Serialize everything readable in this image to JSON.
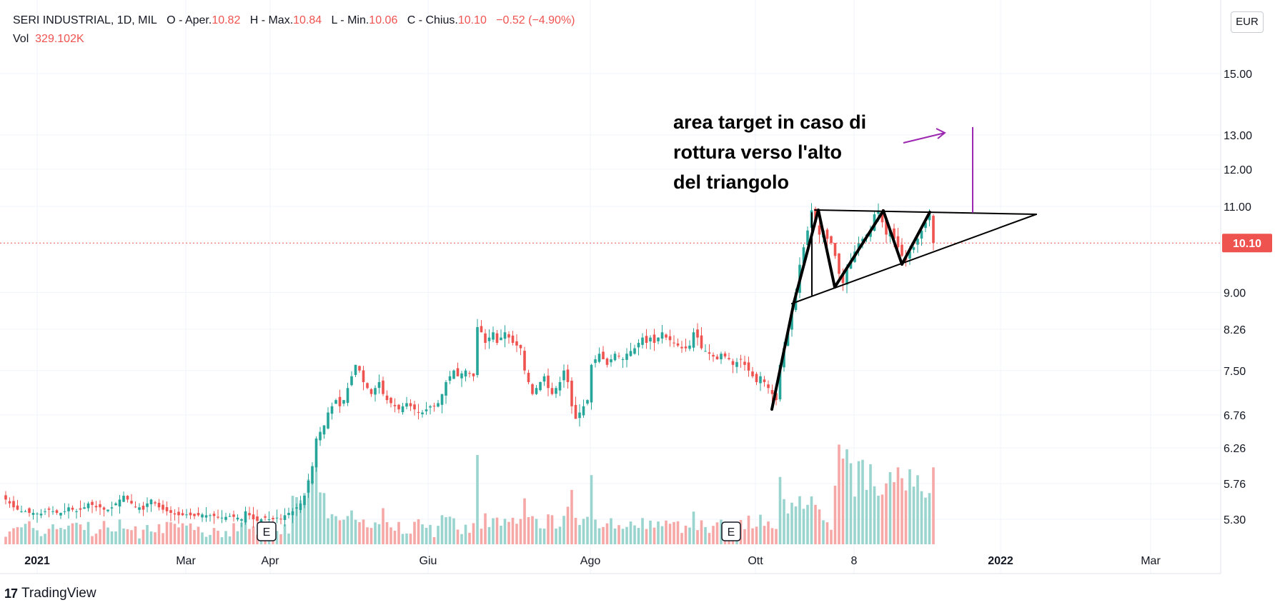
{
  "header": {
    "symbol_line": "SERI INDUSTRIAL, 1D, MIL",
    "o_label": "O - Aper.",
    "o_value": "10.82",
    "h_label": "H - Max.",
    "h_value": "10.84",
    "l_label": "L - Min.",
    "l_value": "10.06",
    "c_label": "C - Chius.",
    "c_value": "10.10",
    "change": "−0.52 (−4.90%)",
    "vol_label": "Vol",
    "vol_value": "329.102K"
  },
  "currency_button": "EUR",
  "annotation": {
    "line1": "area target in caso di",
    "line2": "rottura verso l'alto",
    "line3": "del triangolo"
  },
  "brand": {
    "logo": "17",
    "name": "TradingView"
  },
  "colors": {
    "up": "#26a69a",
    "down": "#ef5350",
    "up_vol": "#9ad4cf",
    "down_vol": "#f5a8a6",
    "grid": "#f0f3fa",
    "accent": "#9c27b0"
  },
  "chart_data": {
    "type": "candlestick",
    "scale": "log",
    "currency": "EUR",
    "last_price": "10.10",
    "y_ticks": [
      "15.00",
      "13.00",
      "12.00",
      "11.00",
      "9.00",
      "8.26",
      "7.50",
      "6.76",
      "6.26",
      "5.76",
      "5.30"
    ],
    "x_ticks": [
      "2021",
      "Mar",
      "Apr",
      "Giu",
      "Ago",
      "Ott",
      "8",
      "2022",
      "Mar"
    ],
    "earnings_marker": "E",
    "closes": [
      5.55,
      5.5,
      5.45,
      5.42,
      5.4,
      5.4,
      5.38,
      5.38,
      5.37,
      5.37,
      5.4,
      5.42,
      5.4,
      5.38,
      5.38,
      5.4,
      5.45,
      5.42,
      5.4,
      5.42,
      5.45,
      5.5,
      5.48,
      5.45,
      5.45,
      5.42,
      5.42,
      5.45,
      5.5,
      5.55,
      5.6,
      5.55,
      5.5,
      5.45,
      5.45,
      5.42,
      5.5,
      5.55,
      5.5,
      5.45,
      5.42,
      5.4,
      5.38,
      5.36,
      5.35,
      5.35,
      5.36,
      5.35,
      5.34,
      5.35,
      5.36,
      5.35,
      5.35,
      5.34,
      5.32,
      5.32,
      5.33,
      5.34,
      5.33,
      5.32,
      5.3,
      5.4,
      5.35,
      5.3,
      5.28,
      5.3,
      5.32,
      5.3,
      5.3,
      5.32,
      5.3,
      5.35,
      5.38,
      5.4,
      5.45,
      5.5,
      5.6,
      5.8,
      6.0,
      6.4,
      6.5,
      6.6,
      6.8,
      6.9,
      7.0,
      6.9,
      7.0,
      7.2,
      7.4,
      7.6,
      7.5,
      7.3,
      7.2,
      7.1,
      7.2,
      7.3,
      7.1,
      7.0,
      6.95,
      6.9,
      6.85,
      6.9,
      6.95,
      6.9,
      6.85,
      6.8,
      6.8,
      6.85,
      6.9,
      6.9,
      6.95,
      7.1,
      7.3,
      7.4,
      7.5,
      7.4,
      7.45,
      7.5,
      7.45,
      7.4,
      8.3,
      8.2,
      8.0,
      8.1,
      8.2,
      8.0,
      8.1,
      8.2,
      8.1,
      8.0,
      7.95,
      7.9,
      7.5,
      7.3,
      7.1,
      7.2,
      7.3,
      7.4,
      7.2,
      7.1,
      7.2,
      7.3,
      7.5,
      7.3,
      6.9,
      6.7,
      6.8,
      6.9,
      7.0,
      7.6,
      7.7,
      7.8,
      7.7,
      7.6,
      7.7,
      7.8,
      7.75,
      7.7,
      7.8,
      7.85,
      7.9,
      8.0,
      8.1,
      8.0,
      8.1,
      8.0,
      8.1,
      8.2,
      8.1,
      8.05,
      8.0,
      7.95,
      7.9,
      7.9,
      7.95,
      8.2,
      8.1,
      7.9,
      7.85,
      7.8,
      7.75,
      7.7,
      7.8,
      7.75,
      7.7,
      7.6,
      7.65,
      7.7,
      7.6,
      7.5,
      7.4,
      7.3,
      7.4,
      7.3,
      7.2,
      7.1,
      7.0,
      7.6,
      7.9,
      8.2,
      8.6,
      9.0,
      9.6,
      10.0,
      10.4,
      10.9,
      10.6,
      10.3,
      10.4,
      10.2,
      10.1,
      9.8,
      9.4,
      9.2,
      9.5,
      9.7,
      9.9,
      10.1,
      10.2,
      10.3,
      10.4,
      10.8,
      10.9,
      10.6,
      10.3,
      10.4,
      10.2,
      10.0,
      9.8,
      9.7,
      9.9,
      10.0,
      10.2,
      10.4,
      10.6,
      10.8,
      10.1
    ]
  }
}
